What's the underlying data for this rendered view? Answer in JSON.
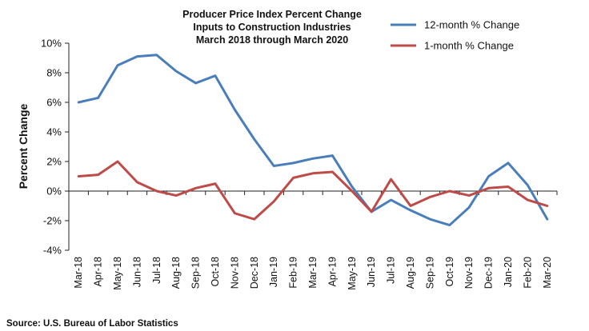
{
  "chart_data": {
    "type": "line",
    "title_lines": [
      "Producer Price Index Percent Change",
      "Inputs to Construction Industries",
      "March 2018 through March 2020"
    ],
    "xlabel": "",
    "ylabel": "Percent Change",
    "ylim": [
      -4,
      10
    ],
    "yticks": [
      -4,
      -2,
      0,
      2,
      4,
      6,
      8,
      10
    ],
    "ytick_labels": [
      "-4%",
      "-2%",
      "0%",
      "2%",
      "4%",
      "6%",
      "8%",
      "10%"
    ],
    "categories": [
      "Mar-18",
      "Apr-18",
      "May-18",
      "Jun-18",
      "Jul-18",
      "Aug-18",
      "Sep-18",
      "Oct-18",
      "Nov-18",
      "Dec-18",
      "Jan-19",
      "Feb-19",
      "Mar-19",
      "Apr-19",
      "May-19",
      "Jun-19",
      "Jul-19",
      "Aug-19",
      "Sep-19",
      "Oct-19",
      "Nov-19",
      "Dec-19",
      "Jan-20",
      "Feb-20",
      "Mar-20"
    ],
    "series": [
      {
        "name": "12-month % Change",
        "color": "#4a7ebb",
        "values": [
          6.0,
          6.3,
          8.5,
          9.1,
          9.2,
          8.1,
          7.3,
          7.8,
          5.5,
          3.5,
          1.7,
          1.9,
          2.2,
          2.4,
          0.3,
          -1.4,
          -0.6,
          -1.3,
          -1.9,
          -2.3,
          -1.1,
          1.0,
          1.9,
          0.4,
          -1.9
        ]
      },
      {
        "name": "1-month % Change",
        "color": "#be4b48",
        "values": [
          1.0,
          1.1,
          2.0,
          0.6,
          0.0,
          -0.3,
          0.2,
          0.5,
          -1.5,
          -1.9,
          -0.7,
          0.9,
          1.2,
          1.3,
          0.0,
          -1.4,
          0.8,
          -1.0,
          -0.4,
          0.0,
          -0.3,
          0.2,
          0.3,
          -0.6,
          -1.0
        ]
      }
    ],
    "legend_position": "top-right",
    "grid": false
  },
  "source": "Source: U.S. Bureau of Labor Statistics"
}
